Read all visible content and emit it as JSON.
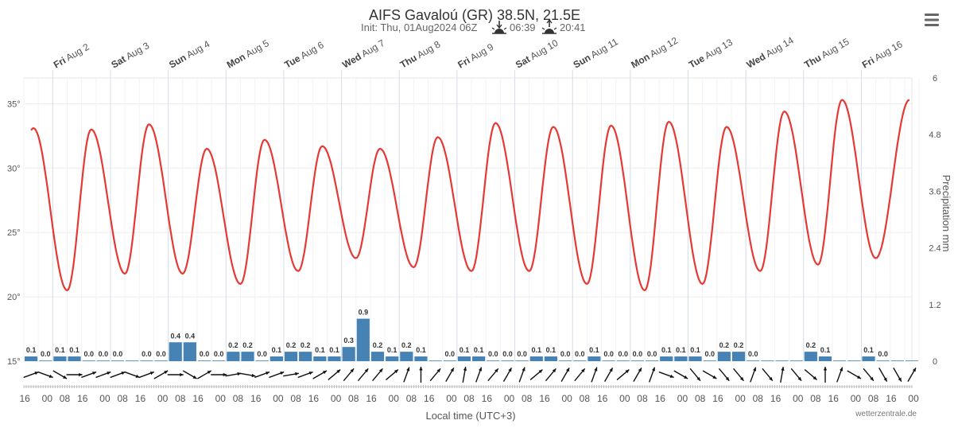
{
  "header": {
    "title": "AIFS Gavaloú (GR) 38.5N, 21.5E",
    "init_text": "Init: Thu, 01Aug2024 06Z",
    "sunrise": "06:39",
    "sunset": "20:41",
    "sunrise_icon": "sunrise-icon",
    "sunset_icon": "sunset-icon"
  },
  "menu": {
    "icon": "hamburger-menu-icon"
  },
  "chart_data": {
    "type": "line",
    "x_axis": {
      "title": "Local time (UTC+3)",
      "start": "2024-08-01 12:00",
      "end": "2024-08-16 21:00",
      "step_hours": 6,
      "tick_labels_cycle": [
        "16",
        "00",
        "08"
      ],
      "day_labels": [
        {
          "date": "2024-08-02",
          "dow": "Fri",
          "label": "Aug 2"
        },
        {
          "date": "2024-08-03",
          "dow": "Sat",
          "label": "Aug 3"
        },
        {
          "date": "2024-08-04",
          "dow": "Sun",
          "label": "Aug 4"
        },
        {
          "date": "2024-08-05",
          "dow": "Mon",
          "label": "Aug 5"
        },
        {
          "date": "2024-08-06",
          "dow": "Tue",
          "label": "Aug 6"
        },
        {
          "date": "2024-08-07",
          "dow": "Wed",
          "label": "Aug 7"
        },
        {
          "date": "2024-08-08",
          "dow": "Thu",
          "label": "Aug 8"
        },
        {
          "date": "2024-08-09",
          "dow": "Fri",
          "label": "Aug 9"
        },
        {
          "date": "2024-08-10",
          "dow": "Sat",
          "label": "Aug 10"
        },
        {
          "date": "2024-08-11",
          "dow": "Sun",
          "label": "Aug 11"
        },
        {
          "date": "2024-08-12",
          "dow": "Mon",
          "label": "Aug 12"
        },
        {
          "date": "2024-08-13",
          "dow": "Tue",
          "label": "Aug 13"
        },
        {
          "date": "2024-08-14",
          "dow": "Wed",
          "label": "Aug 14"
        },
        {
          "date": "2024-08-15",
          "dow": "Thu",
          "label": "Aug 15"
        },
        {
          "date": "2024-08-16",
          "dow": "Fri",
          "label": "Aug 16"
        }
      ]
    },
    "y_left": {
      "unit": "°",
      "range": [
        15,
        37
      ],
      "ticks": [
        15,
        20,
        25,
        30,
        35
      ]
    },
    "y_right": {
      "title": "Precipitation mm",
      "range": [
        0,
        6
      ],
      "ticks": [
        "0",
        "1.2",
        "2.4",
        "3.6",
        "4.8",
        "6"
      ]
    },
    "temperature": {
      "color": "#e53935",
      "daily_extremes": [
        {
          "date": "2024-08-01",
          "max": 33.1
        },
        {
          "date": "2024-08-02",
          "min": 20.5,
          "max": 33.0
        },
        {
          "date": "2024-08-03",
          "min": 21.8,
          "max": 33.4
        },
        {
          "date": "2024-08-04",
          "min": 21.8,
          "max": 31.5
        },
        {
          "date": "2024-08-05",
          "min": 21.0,
          "max": 32.2
        },
        {
          "date": "2024-08-06",
          "min": 22.0,
          "max": 31.7
        },
        {
          "date": "2024-08-07",
          "min": 23.0,
          "max": 31.5
        },
        {
          "date": "2024-08-08",
          "min": 22.3,
          "max": 32.4
        },
        {
          "date": "2024-08-09",
          "min": 22.0,
          "max": 33.5
        },
        {
          "date": "2024-08-10",
          "min": 22.0,
          "max": 33.2
        },
        {
          "date": "2024-08-11",
          "min": 21.0,
          "max": 33.3
        },
        {
          "date": "2024-08-12",
          "min": 20.5,
          "max": 33.6
        },
        {
          "date": "2024-08-13",
          "min": 21.0,
          "max": 33.2
        },
        {
          "date": "2024-08-14",
          "min": 22.0,
          "max": 34.4
        },
        {
          "date": "2024-08-15",
          "min": 22.5,
          "max": 35.3
        },
        {
          "date": "2024-08-16",
          "min": 23.0
        }
      ]
    },
    "precipitation": {
      "color": "#4682b4",
      "unit": "mm",
      "values": [
        0.1,
        0.0,
        0.1,
        0.1,
        0.0,
        0.0,
        0.0,
        0.0,
        0.0,
        0.0,
        0.4,
        0.4,
        0.0,
        0.0,
        0.2,
        0.2,
        0.0,
        0.1,
        0.2,
        0.2,
        0.1,
        0.1,
        0.3,
        0.9,
        0.2,
        0.1,
        0.2,
        0.1,
        0.0,
        0.0,
        0.1,
        0.1,
        0.0,
        0.0,
        0.0,
        0.1,
        0.1,
        0.0,
        0.0,
        0.1,
        0.0,
        0.0,
        0.0,
        0.0,
        0.1,
        0.1,
        0.1,
        0.0,
        0.2,
        0.2,
        0.0,
        0.0,
        0.0,
        0.0,
        0.2,
        0.1,
        0.0,
        0.0,
        0.1,
        0.0,
        0.0,
        0.0
      ],
      "label_mask": [
        1,
        1,
        1,
        1,
        1,
        1,
        1,
        0,
        1,
        1,
        1,
        1,
        1,
        1,
        1,
        1,
        1,
        1,
        1,
        1,
        1,
        1,
        1,
        1,
        1,
        1,
        1,
        1,
        0,
        1,
        1,
        1,
        1,
        1,
        1,
        1,
        1,
        1,
        1,
        1,
        1,
        1,
        1,
        1,
        1,
        1,
        1,
        1,
        1,
        1,
        1,
        0,
        0,
        0,
        1,
        1,
        0,
        0,
        1,
        1,
        0,
        0
      ]
    },
    "wind_direction_deg": [
      250,
      290,
      300,
      270,
      250,
      250,
      250,
      290,
      250,
      240,
      270,
      300,
      240,
      270,
      260,
      280,
      250,
      250,
      260,
      250,
      240,
      230,
      220,
      220,
      220,
      230,
      200,
      180,
      220,
      210,
      190,
      200,
      220,
      210,
      200,
      230,
      220,
      210,
      220,
      200,
      210,
      230,
      210,
      200,
      290,
      300,
      320,
      300,
      320,
      320,
      200,
      320,
      190,
      320,
      310,
      180,
      200,
      300,
      320,
      330,
      330,
      210
    ]
  },
  "footer": {
    "credit": "wetterzentrale.de"
  }
}
